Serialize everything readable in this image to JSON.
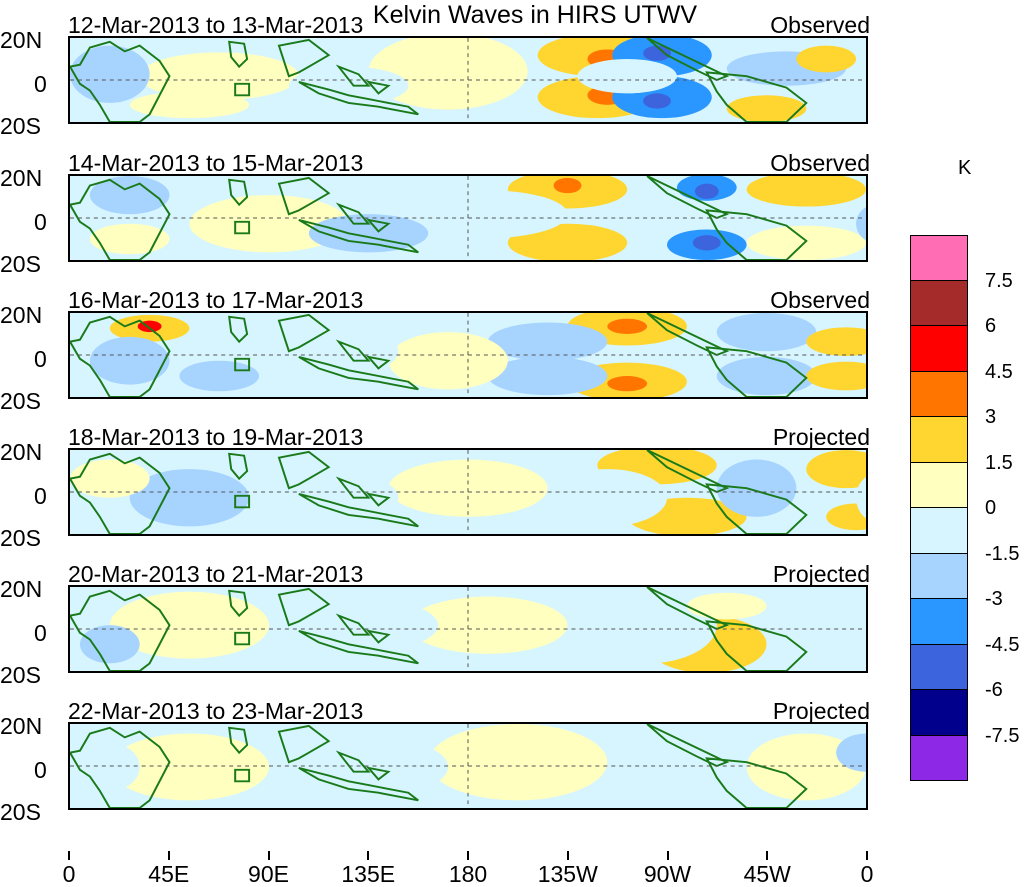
{
  "title": "Kelvin Waves in HIRS UTWV",
  "units": "K",
  "lat_labels": [
    "20N",
    "0",
    "20S"
  ],
  "x_tick_labels": [
    "0",
    "45E",
    "90E",
    "135E",
    "180",
    "135W",
    "90W",
    "45W",
    "0"
  ],
  "panels": [
    {
      "date": "12-Mar-2013 to 13-Mar-2013",
      "status": "Observed"
    },
    {
      "date": "14-Mar-2013 to 15-Mar-2013",
      "status": "Observed"
    },
    {
      "date": "16-Mar-2013 to 17-Mar-2013",
      "status": "Observed"
    },
    {
      "date": "18-Mar-2013 to 19-Mar-2013",
      "status": "Projected"
    },
    {
      "date": "20-Mar-2013 to 21-Mar-2013",
      "status": "Projected"
    },
    {
      "date": "22-Mar-2013 to 23-Mar-2013",
      "status": "Projected"
    }
  ],
  "colorbar": {
    "labels": [
      "7.5",
      "6",
      "4.5",
      "3",
      "1.5",
      "0",
      "-1.5",
      "-3",
      "-4.5",
      "-6",
      "-7.5"
    ],
    "colors": [
      "#ff6eb4",
      "#a52a2a",
      "#ff0000",
      "#ff7500",
      "#ffd530",
      "#ffffc0",
      "#d6f5ff",
      "#a7d3ff",
      "#2a96ff",
      "#3c64dc",
      "#00008c",
      "#8c28e6"
    ]
  },
  "map_colors": {
    "land": "#1a7a1a",
    "grid": "#1a7a1a",
    "equator": "#555555"
  }
}
